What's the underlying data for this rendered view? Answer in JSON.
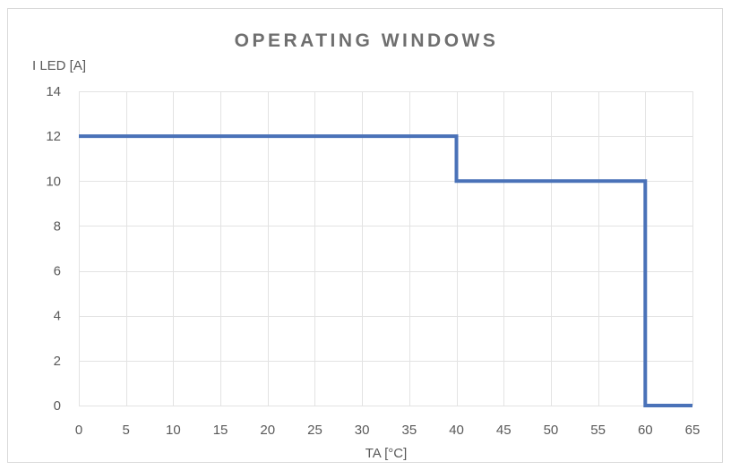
{
  "chart_data": {
    "type": "line",
    "title": "OPERATING WINDOWS",
    "xlabel": "TA [°C]",
    "ylabel": "I LED [A]",
    "xlim": [
      0,
      65
    ],
    "ylim": [
      0,
      14
    ],
    "xticks": [
      0,
      5,
      10,
      15,
      20,
      25,
      30,
      35,
      40,
      45,
      50,
      55,
      60,
      65
    ],
    "yticks": [
      0,
      2,
      4,
      6,
      8,
      10,
      12,
      14
    ],
    "grid": true,
    "legend": "none",
    "series": [
      {
        "color": "#4a72b8",
        "x": [
          0,
          40,
          40,
          60,
          60,
          65
        ],
        "y": [
          12,
          12,
          10,
          10,
          0,
          0
        ]
      }
    ]
  }
}
